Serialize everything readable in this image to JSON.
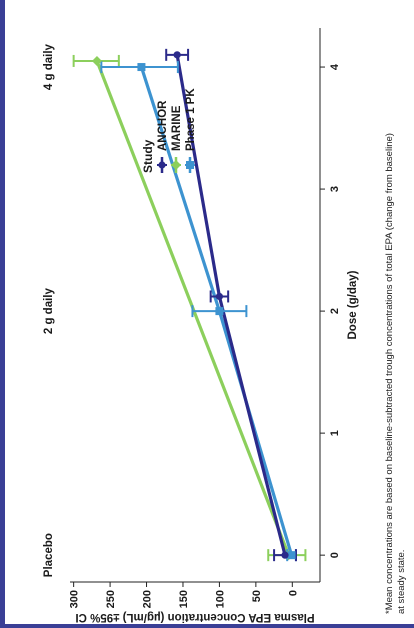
{
  "chart_data": {
    "type": "line",
    "orientation": "rotated-90-ccw",
    "xlabel": "Dose (g/day)",
    "ylabel": "Plasma EPA Concentration (µg/mL) ±95% CI",
    "x_ticks": [
      0,
      1,
      2,
      3,
      4
    ],
    "y_ticks": [
      0,
      50,
      100,
      150,
      200,
      250,
      300
    ],
    "xlim": [
      -0.22,
      4.32
    ],
    "ylim": [
      -38,
      305
    ],
    "dose_labels": [
      {
        "x": 0,
        "text": "Placebo"
      },
      {
        "x": 2,
        "text": "2 g daily"
      },
      {
        "x": 4,
        "text": "4 g daily"
      }
    ],
    "legend": {
      "title": "Study",
      "position": "right"
    },
    "series": [
      {
        "name": "ANCHOR",
        "color": "#2b2a8a",
        "marker": "circle",
        "points": [
          {
            "x": 0,
            "y": 10,
            "lo": -5,
            "hi": 25
          },
          {
            "x": 2.12,
            "y": 100,
            "lo": 88,
            "hi": 112
          },
          {
            "x": 4.1,
            "y": 158,
            "lo": 143,
            "hi": 173
          }
        ]
      },
      {
        "name": "MARINE",
        "color": "#8ccf5c",
        "marker": "diamond",
        "points": [
          {
            "x": 0,
            "y": 5,
            "lo": -18,
            "hi": 33
          },
          {
            "x": 4.05,
            "y": 268,
            "lo": 238,
            "hi": 300
          }
        ]
      },
      {
        "name": "Phase 1 PK",
        "color": "#3d93d0",
        "marker": "square",
        "points": [
          {
            "x": 0,
            "y": 1,
            "lo": -5,
            "hi": 7
          },
          {
            "x": 2,
            "y": 100,
            "lo": 63,
            "hi": 137
          },
          {
            "x": 4,
            "y": 207,
            "lo": 157,
            "hi": 262
          }
        ]
      }
    ],
    "footnote_lines": [
      "*Mean concentrations are based on baseline-subtracted trough concentrations of total EPA (change from baseline)",
      "at steady state."
    ]
  }
}
